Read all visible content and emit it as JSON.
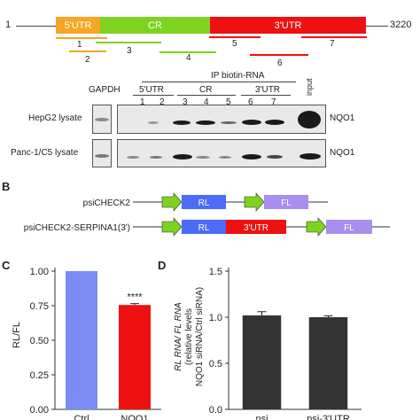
{
  "panelA": {
    "gene": {
      "start_label": "1",
      "end_label": "3220",
      "segments": [
        {
          "label": "5'UTR",
          "color": "#f5a623"
        },
        {
          "label": "CR",
          "color": "#7ed321"
        },
        {
          "label": "3'UTR",
          "color": "#ee1111"
        }
      ]
    },
    "probes": [
      {
        "label": "1",
        "color": "#f5a623"
      },
      {
        "label": "2",
        "color": "#f5a623"
      },
      {
        "label": "3",
        "color": "#7ed321"
      },
      {
        "label": "4",
        "color": "#7ed321"
      },
      {
        "label": "5",
        "color": "#ee1111"
      },
      {
        "label": "6",
        "color": "#ee1111"
      },
      {
        "label": "7",
        "color": "#ee1111"
      }
    ],
    "blot": {
      "gapdh_label": "GAPDH",
      "ip_label": "IP biotin-RNA",
      "groups": [
        "5'UTR",
        "CR",
        "3'UTR"
      ],
      "lanes": [
        "1",
        "2",
        "3",
        "4",
        "5",
        "6",
        "7"
      ],
      "input_label": "input",
      "rows": [
        {
          "label": "HepG2 lysate",
          "target": "NQO1"
        },
        {
          "label": "Panc-1/C5 lysate",
          "target": "NQO1"
        }
      ]
    }
  },
  "panelB": {
    "letter": "B",
    "constructs": [
      {
        "name": "psiCHECK2",
        "boxes": [
          "RL",
          "FL"
        ]
      },
      {
        "name": "psiCHECK2-SERPINA1(3')",
        "boxes": [
          "RL",
          "3'UTR",
          "FL"
        ]
      }
    ],
    "colors": {
      "arrow": "#7ed321",
      "rl": "#4a6cf7",
      "utr": "#ee1111",
      "fl": "#a98ef0"
    }
  },
  "panelC": {
    "letter": "C",
    "significance": "****",
    "chart_data": {
      "type": "bar",
      "categories": [
        "Ctrl",
        "NQO1"
      ],
      "values": [
        1.0,
        0.755
      ],
      "errors": [
        0,
        0.01
      ],
      "colors": [
        "#7b8cf5",
        "#ee1111"
      ],
      "ylabel": "RL/FL",
      "ylim": [
        0.0,
        1.0
      ],
      "yticks": [
        "0.00",
        "0.25",
        "0.50",
        "0.75",
        "1.00"
      ]
    }
  },
  "panelD": {
    "letter": "D",
    "chart_data": {
      "type": "bar",
      "categories": [
        "nsi",
        "nsi-3'UTR"
      ],
      "values": [
        1.02,
        1.0
      ],
      "errors": [
        0.04,
        0.015
      ],
      "colors": [
        "#333333",
        "#333333"
      ],
      "ylabel_lines": [
        "RL RNA/ FL RNA",
        "(relative levels",
        "NQO1 siRNA/Ctrl siRNA)"
      ],
      "ylim": [
        0.0,
        1.5
      ],
      "yticks": [
        "0.0",
        "0.5",
        "1.0",
        "1.5"
      ]
    }
  }
}
